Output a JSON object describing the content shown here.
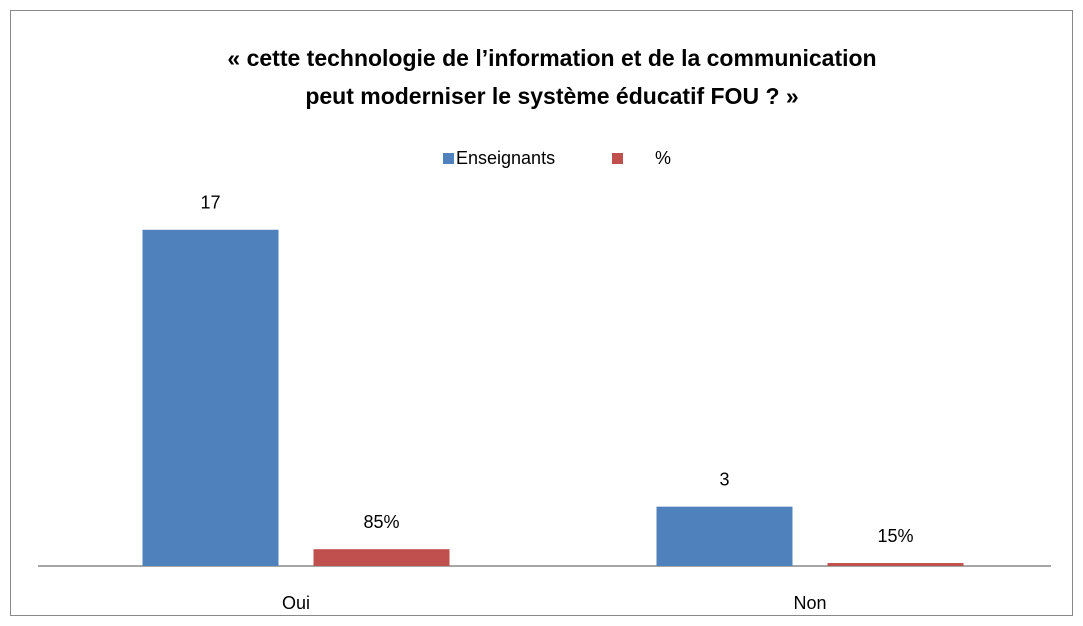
{
  "chart_data": {
    "type": "bar",
    "title": [
      "«  cette technologie de l’information et de la communication",
      "peut moderniser le système éducatif  FOU ? »"
    ],
    "categories": [
      "Oui",
      "Non"
    ],
    "series": [
      {
        "name": "Enseignants",
        "color": "#4f81bd",
        "values": [
          17,
          3
        ]
      },
      {
        "name": "%",
        "color": "#c0504d",
        "values": [
          0.85,
          0.15
        ],
        "value_labels": [
          "85%",
          "15%"
        ]
      }
    ],
    "ylim": [
      0,
      18
    ],
    "legend": "top"
  }
}
